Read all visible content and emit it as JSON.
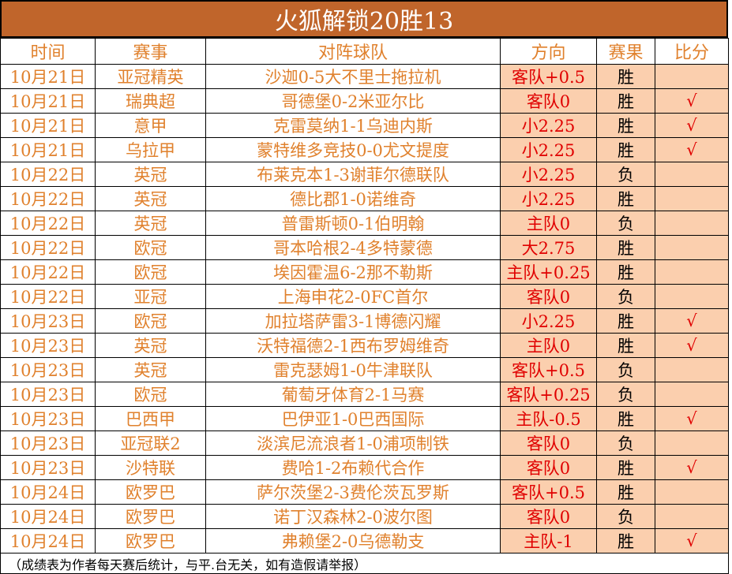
{
  "title": "火狐解锁20胜13",
  "headers": [
    "时间",
    "赛事",
    "对阵球队",
    "方向",
    "赛果",
    "比分"
  ],
  "rows": [
    {
      "date": "10月21日",
      "league": "亚冠精英",
      "match": "沙迦0-5大不里士拖拉机",
      "direction": "客队+0.5",
      "result": "胜",
      "mark": ""
    },
    {
      "date": "10月21日",
      "league": "瑞典超",
      "match": "哥德堡0-2米亚尔比",
      "direction": "客队0",
      "result": "胜",
      "mark": "√"
    },
    {
      "date": "10月21日",
      "league": "意甲",
      "match": "克雷莫纳1-1乌迪内斯",
      "direction": "小2.25",
      "result": "胜",
      "mark": "√"
    },
    {
      "date": "10月21日",
      "league": "乌拉甲",
      "match": "蒙特维多竞技0-0尤文提度",
      "direction": "小2.25",
      "result": "胜",
      "mark": "√"
    },
    {
      "date": "10月22日",
      "league": "英冠",
      "match": "布莱克本1-3谢菲尔德联队",
      "direction": "小2.25",
      "result": "负",
      "mark": ""
    },
    {
      "date": "10月22日",
      "league": "英冠",
      "match": "德比郡1-0诺维奇",
      "direction": "小2.25",
      "result": "胜",
      "mark": ""
    },
    {
      "date": "10月22日",
      "league": "英冠",
      "match": "普雷斯顿0-1伯明翰",
      "direction": "主队0",
      "result": "负",
      "mark": ""
    },
    {
      "date": "10月22日",
      "league": "欧冠",
      "match": "哥本哈根2-4多特蒙德",
      "direction": "大2.75",
      "result": "胜",
      "mark": ""
    },
    {
      "date": "10月22日",
      "league": "欧冠",
      "match": "埃因霍温6-2那不勒斯",
      "direction": "主队+0.25",
      "result": "胜",
      "mark": ""
    },
    {
      "date": "10月22日",
      "league": "亚冠",
      "match": "上海申花2-0FC首尔",
      "direction": "客队0",
      "result": "负",
      "mark": ""
    },
    {
      "date": "10月23日",
      "league": "欧冠",
      "match": "加拉塔萨雷3-1博德闪耀",
      "direction": "小2.25",
      "result": "胜",
      "mark": "√"
    },
    {
      "date": "10月23日",
      "league": "英冠",
      "match": "沃特福德2-1西布罗姆维奇",
      "direction": "主队0",
      "result": "胜",
      "mark": "√"
    },
    {
      "date": "10月23日",
      "league": "英冠",
      "match": "雷克瑟姆1-0牛津联队",
      "direction": "客队+0.5",
      "result": "负",
      "mark": ""
    },
    {
      "date": "10月23日",
      "league": "欧冠",
      "match": "葡萄牙体育2-1马赛",
      "direction": "客队+0.25",
      "result": "负",
      "mark": ""
    },
    {
      "date": "10月23日",
      "league": "巴西甲",
      "match": "巴伊亚1-0巴西国际",
      "direction": "主队-0.5",
      "result": "胜",
      "mark": "√"
    },
    {
      "date": "10月23日",
      "league": "亚冠联2",
      "match": "淡滨尼流浪者1-0浦项制铁",
      "direction": "客队0",
      "result": "负",
      "mark": ""
    },
    {
      "date": "10月23日",
      "league": "沙特联",
      "match": "费哈1-2布赖代合作",
      "direction": "客队0",
      "result": "胜",
      "mark": "√"
    },
    {
      "date": "10月24日",
      "league": "欧罗巴",
      "match": "萨尔茨堡2-3费伦茨瓦罗斯",
      "direction": "客队+0.5",
      "result": "胜",
      "mark": ""
    },
    {
      "date": "10月24日",
      "league": "欧罗巴",
      "match": "诺丁汉森林2-0波尔图",
      "direction": "客队0",
      "result": "负",
      "mark": ""
    },
    {
      "date": "10月24日",
      "league": "欧罗巴",
      "match": "弗赖堡2-0乌德勒支",
      "direction": "主队-1",
      "result": "胜",
      "mark": "√"
    }
  ],
  "footnote": "（成绩表为作者每天赛后统计，与平.台无关，如有造假请举报）",
  "colors": {
    "title_bg": "#c0652b",
    "text_orange": "#e0812d",
    "text_red": "#e00000",
    "highlight": "#fbcfae"
  }
}
